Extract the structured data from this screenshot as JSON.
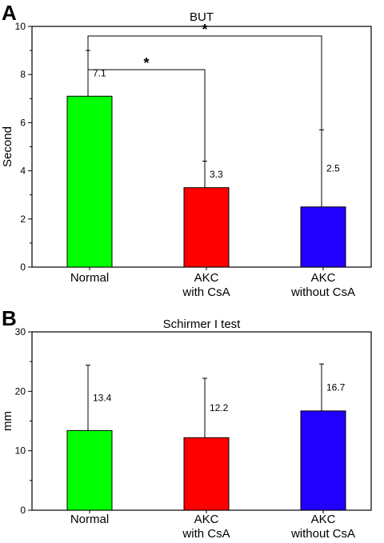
{
  "chart_data": [
    {
      "type": "bar",
      "panel": "A",
      "title": "BUT",
      "ylabel": "Second",
      "xlabel": "",
      "ylim": [
        0,
        10
      ],
      "yticks": [
        0,
        2,
        4,
        6,
        8,
        10
      ],
      "categories": [
        {
          "lines": [
            "Normal"
          ]
        },
        {
          "lines": [
            "AKC",
            "with CsA"
          ]
        },
        {
          "lines": [
            "AKC",
            "without CsA"
          ]
        }
      ],
      "values": [
        7.1,
        3.3,
        2.5
      ],
      "value_labels": [
        "7.1",
        "3.3",
        "2.5"
      ],
      "error_upper": [
        9.0,
        4.4,
        5.7
      ],
      "colors": [
        "#00ff00",
        "#ff0000",
        "#2200ff"
      ],
      "grid": false,
      "significance": [
        {
          "from": 0,
          "to": 1,
          "label": "*",
          "y": 8.2
        },
        {
          "from": 0,
          "to": 2,
          "label": "*",
          "y": 9.6
        }
      ]
    },
    {
      "type": "bar",
      "panel": "B",
      "title": "Schirmer I test",
      "ylabel": "mm",
      "xlabel": "",
      "ylim": [
        0,
        30
      ],
      "yticks": [
        0,
        10,
        20,
        30
      ],
      "categories": [
        {
          "lines": [
            "Normal"
          ]
        },
        {
          "lines": [
            "AKC",
            "with CsA"
          ]
        },
        {
          "lines": [
            "AKC",
            "without CsA"
          ]
        }
      ],
      "values": [
        13.4,
        12.2,
        16.7
      ],
      "value_labels": [
        "13.4",
        "12.2",
        "16.7"
      ],
      "error_upper": [
        24.4,
        22.2,
        24.6
      ],
      "colors": [
        "#00ff00",
        "#ff0000",
        "#2200ff"
      ],
      "grid": false,
      "significance": []
    }
  ]
}
